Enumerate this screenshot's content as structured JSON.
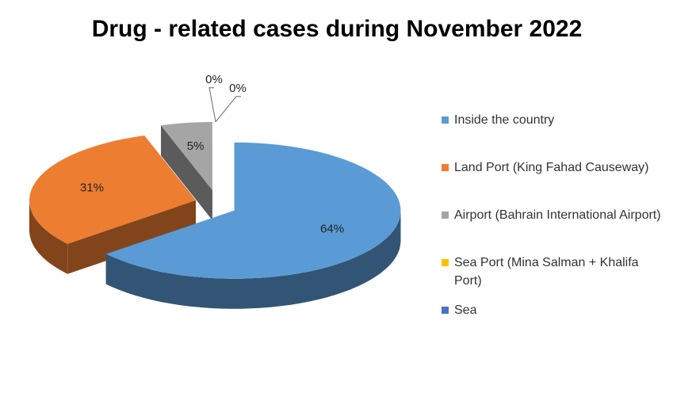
{
  "chart_data": {
    "type": "pie",
    "title": "Drug - related cases during November 2022",
    "categories": [
      "Inside the country",
      "Land Port (King Fahad Causeway)",
      "Airport (Bahrain International Airport)",
      "Sea Port (Mina Salman + Khalifa Port)",
      "Sea"
    ],
    "values": [
      64,
      31,
      5,
      0,
      0
    ],
    "value_labels": [
      "64%",
      "31%",
      "5%",
      "0%",
      "0%"
    ],
    "colors": [
      "#5b9bd5",
      "#ed7d31",
      "#a5a5a5",
      "#ffc000",
      "#4472c4"
    ],
    "legend": "right"
  }
}
